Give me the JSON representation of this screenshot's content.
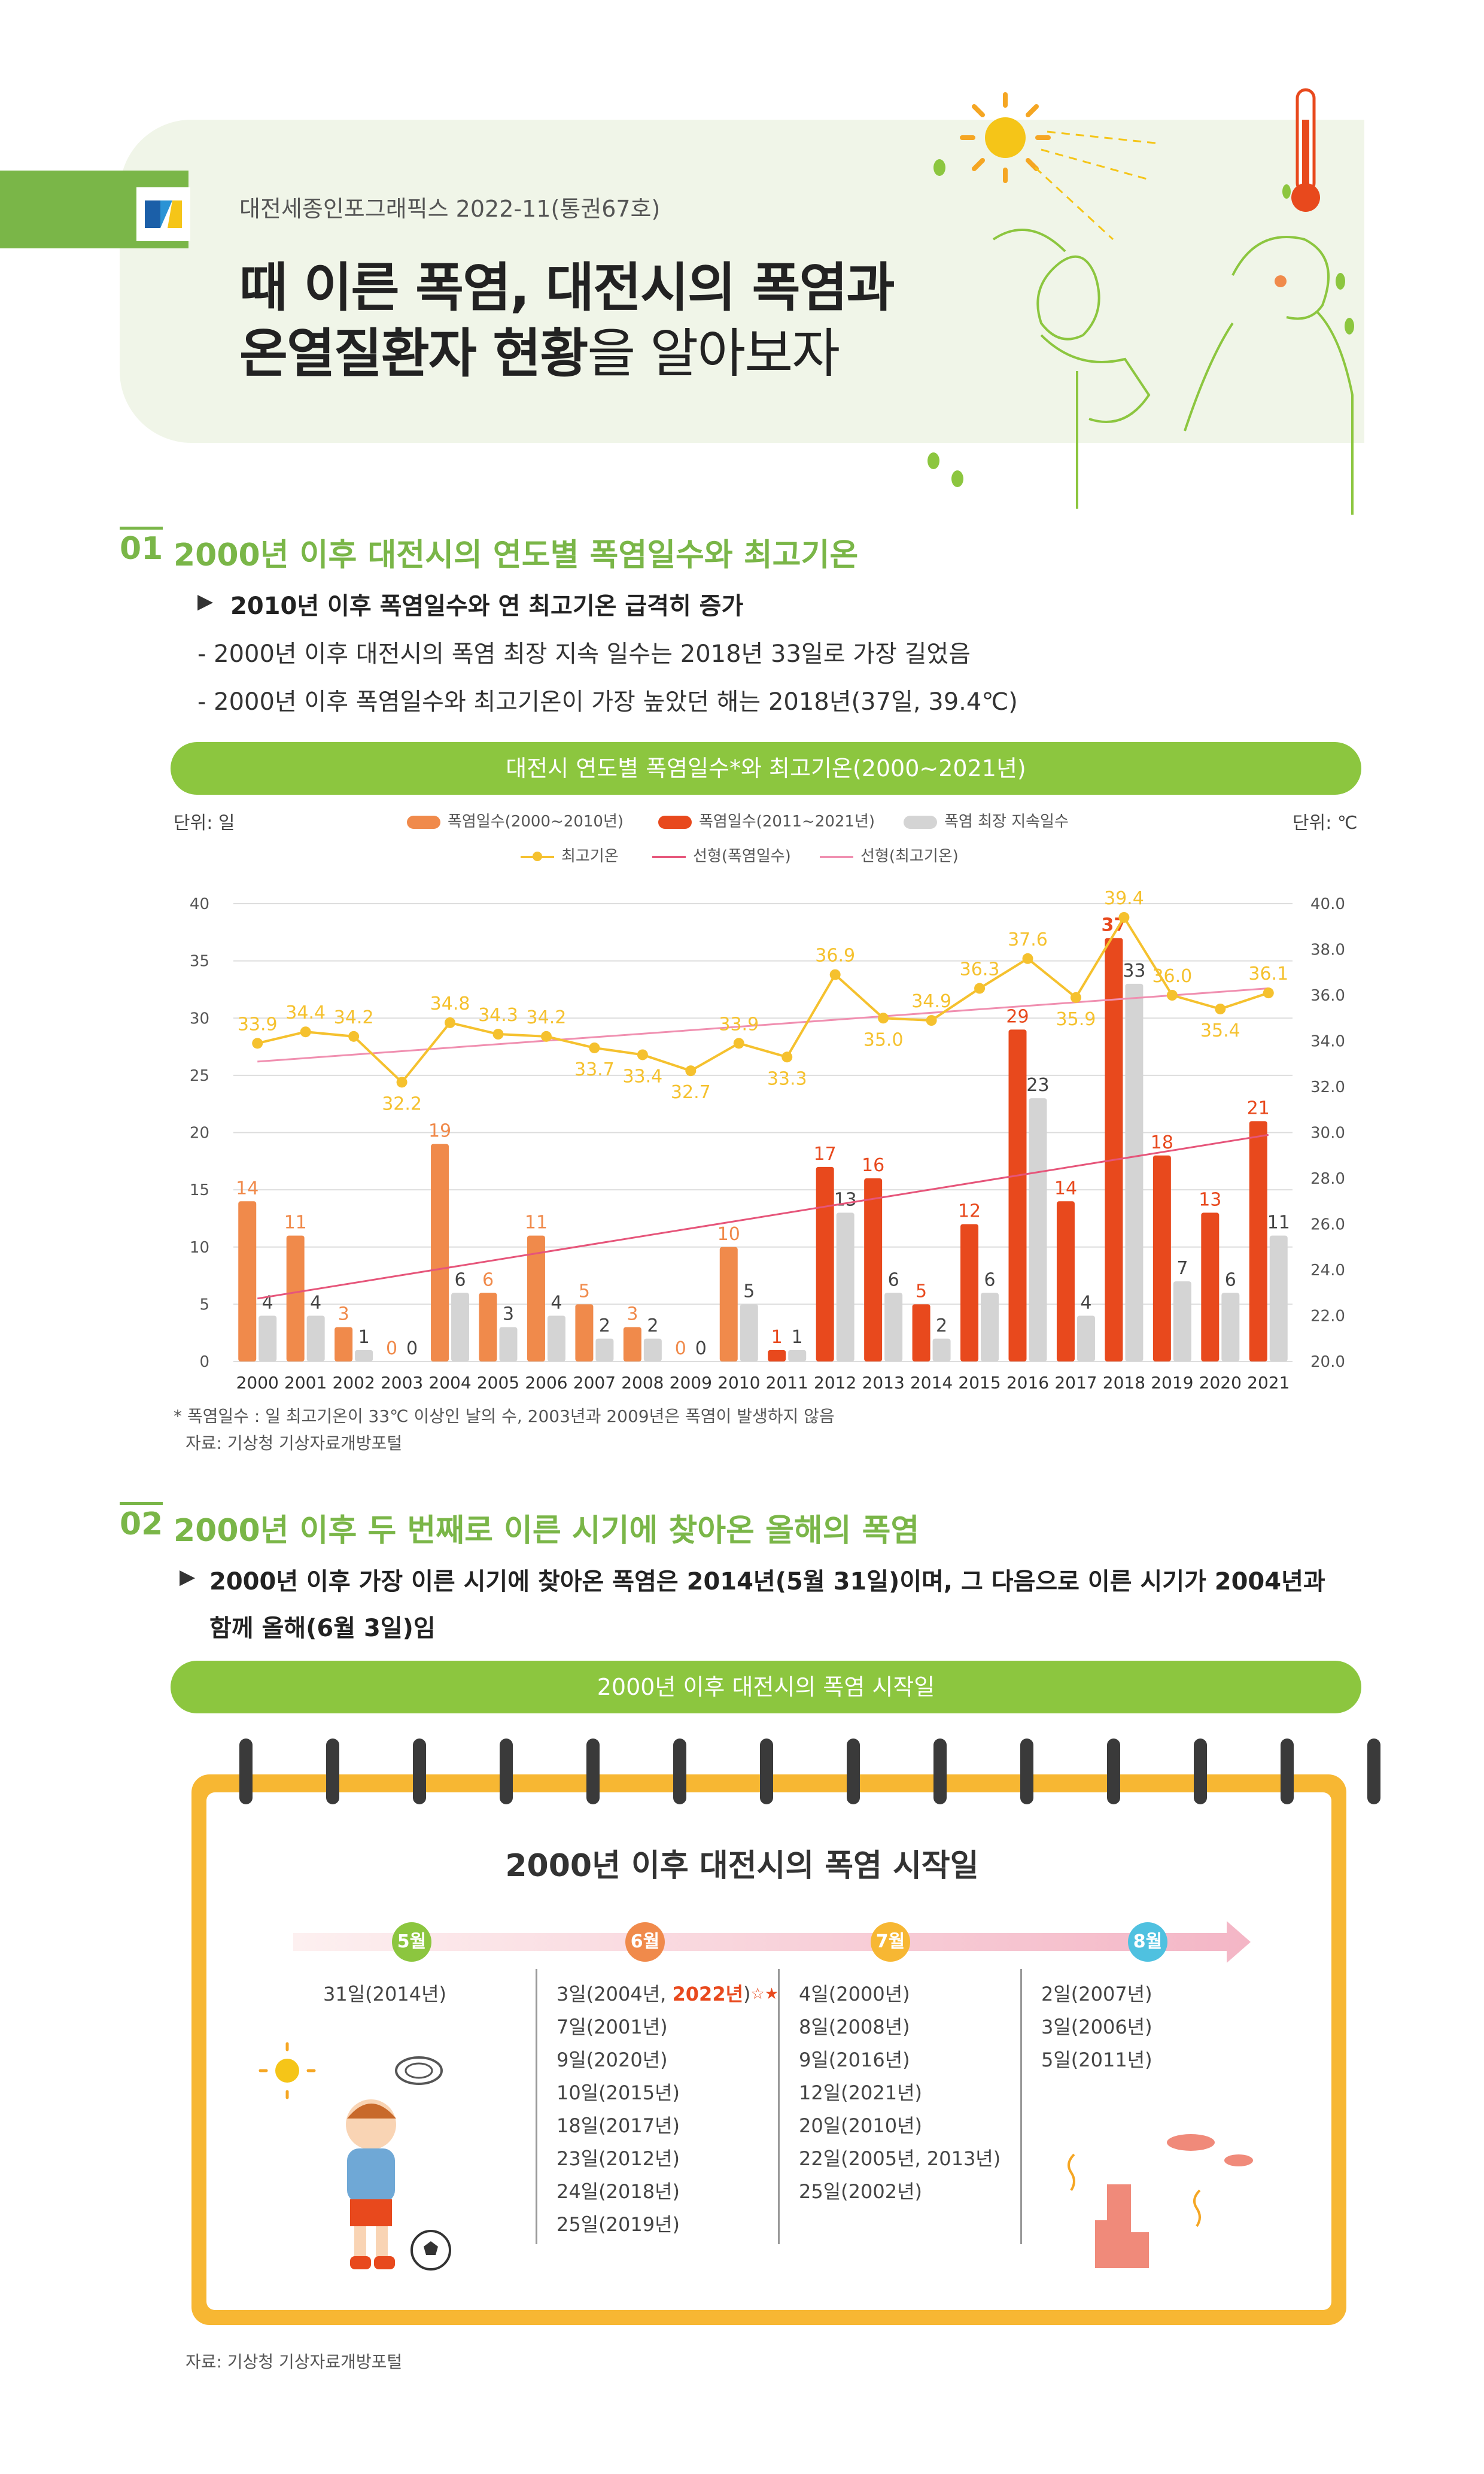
{
  "header": {
    "publisher": "대전세종인포그래픽스 2022-11(통권67호)",
    "title_line1": "때 이른 폭염, 대전시의 폭염과",
    "title_line2_bold": "온열질환자 현황",
    "title_line2_light": "을 알아보자"
  },
  "section1": {
    "number": "01",
    "title": "2000년 이후 대전시의 연도별 폭염일수와 최고기온",
    "bullet": "2010년 이후 폭염일수와 연 최고기온 급격히 증가",
    "subs": [
      "- 2000년 이후 대전시의 폭염 최장 지속 일수는 2018년 33일로 가장 길었음",
      "- 2000년 이후 폭염일수와 최고기온이 가장 높았던 해는 2018년(37일, 39.4℃)"
    ],
    "chart_header": "대전시 연도별 폭염일수*와 최고기온(2000~2021년)",
    "unit_left": "단위: 일",
    "unit_right": "단위: ℃",
    "footnote": "* 폭염일수 : 일 최고기온이 33℃ 이상인 날의 수, 2003년과 2009년은 폭염이 발생하지 않음",
    "source": "자료: 기상청 기상자료개방포털"
  },
  "legend": {
    "a": "폭염일수(2000~2010년)",
    "b": "폭염일수(2011~2021년)",
    "c": "폭염 최장 지속일수",
    "d": "최고기온",
    "e": "선형(폭염일수)",
    "f": "선형(최고기온)"
  },
  "colors": {
    "bar_early": "#f08a4b",
    "bar_late": "#e8491d",
    "bar_gray": "#d4d4d4",
    "line_temp": "#f5c12e",
    "trend_days": "#e6557a",
    "trend_temp": "#f08fb0",
    "green": "#7ab648",
    "pill": "#8cc63f",
    "calendar": "#f7b733"
  },
  "chart_data": {
    "type": "bar",
    "title": "대전시 연도별 폭염일수*와 최고기온(2000~2021년)",
    "categories": [
      "2000",
      "2001",
      "2002",
      "2003",
      "2004",
      "2005",
      "2006",
      "2007",
      "2008",
      "2009",
      "2010",
      "2011",
      "2012",
      "2013",
      "2014",
      "2015",
      "2016",
      "2017",
      "2018",
      "2019",
      "2020",
      "2021"
    ],
    "series": [
      {
        "name": "폭염일수(2000~2010년)/폭염일수(2011~2021년)",
        "values": [
          14,
          11,
          3,
          0,
          19,
          6,
          11,
          5,
          3,
          0,
          10,
          1,
          17,
          16,
          5,
          12,
          29,
          14,
          37,
          18,
          13,
          21
        ]
      },
      {
        "name": "폭염 최장 지속일수",
        "values": [
          4,
          4,
          1,
          0,
          6,
          3,
          4,
          2,
          2,
          0,
          5,
          1,
          13,
          6,
          2,
          6,
          23,
          4,
          33,
          7,
          6,
          11
        ]
      },
      {
        "name": "최고기온",
        "values": [
          33.9,
          34.4,
          34.2,
          32.2,
          34.8,
          34.3,
          34.2,
          33.7,
          33.4,
          32.7,
          33.9,
          33.3,
          36.9,
          35.0,
          34.9,
          36.3,
          37.6,
          35.9,
          39.4,
          36.0,
          35.4,
          36.1
        ]
      }
    ],
    "y_left": {
      "ticks": [
        "0",
        "5",
        "10",
        "15",
        "20",
        "25",
        "30",
        "35",
        "40"
      ],
      "range": [
        0,
        40
      ]
    },
    "y_right": {
      "ticks": [
        "20.0",
        "22.0",
        "24.0",
        "26.0",
        "28.0",
        "30.0",
        "32.0",
        "34.0",
        "36.0",
        "38.0",
        "40.0"
      ],
      "range": [
        20,
        40
      ]
    },
    "trend_days": [
      5.5,
      19.8
    ],
    "trend_temp": [
      33.1,
      36.3
    ],
    "grid": true,
    "legend_position": "top"
  },
  "section2": {
    "number": "02",
    "title": "2000년 이후 두 번째로 이른 시기에 찾아온 올해의 폭염",
    "bullet_line1": "2000년 이후 가장 이른 시기에 찾아온 폭염은 2014년(5월 31일)이며, 그 다음으로 이른 시기가 2004년과",
    "bullet_line2": "함께 올해(6월 3일)임",
    "pill": "2000년 이후 대전시의 폭염 시작일",
    "calendar_title": "2000년 이후 대전시의 폭염 시작일",
    "months": [
      "5월",
      "6월",
      "7월",
      "8월"
    ],
    "may": [
      "31일(2014년)"
    ],
    "june_first_prefix": "3일(2004년, ",
    "june_first_highlight": "2022년",
    "june_first_suffix": ")",
    "june": [
      "7일(2001년)",
      "9일(2020년)",
      "10일(2015년)",
      "18일(2017년)",
      "23일(2012년)",
      "24일(2018년)",
      "25일(2019년)"
    ],
    "july": [
      "4일(2000년)",
      "8일(2008년)",
      "9일(2016년)",
      "12일(2021년)",
      "20일(2010년)",
      "22일(2005년, 2013년)",
      "25일(2002년)"
    ],
    "august": [
      "2일(2007년)",
      "3일(2006년)",
      "5일(2011년)"
    ],
    "source": "자료: 기상청 기상자료개방포털"
  }
}
